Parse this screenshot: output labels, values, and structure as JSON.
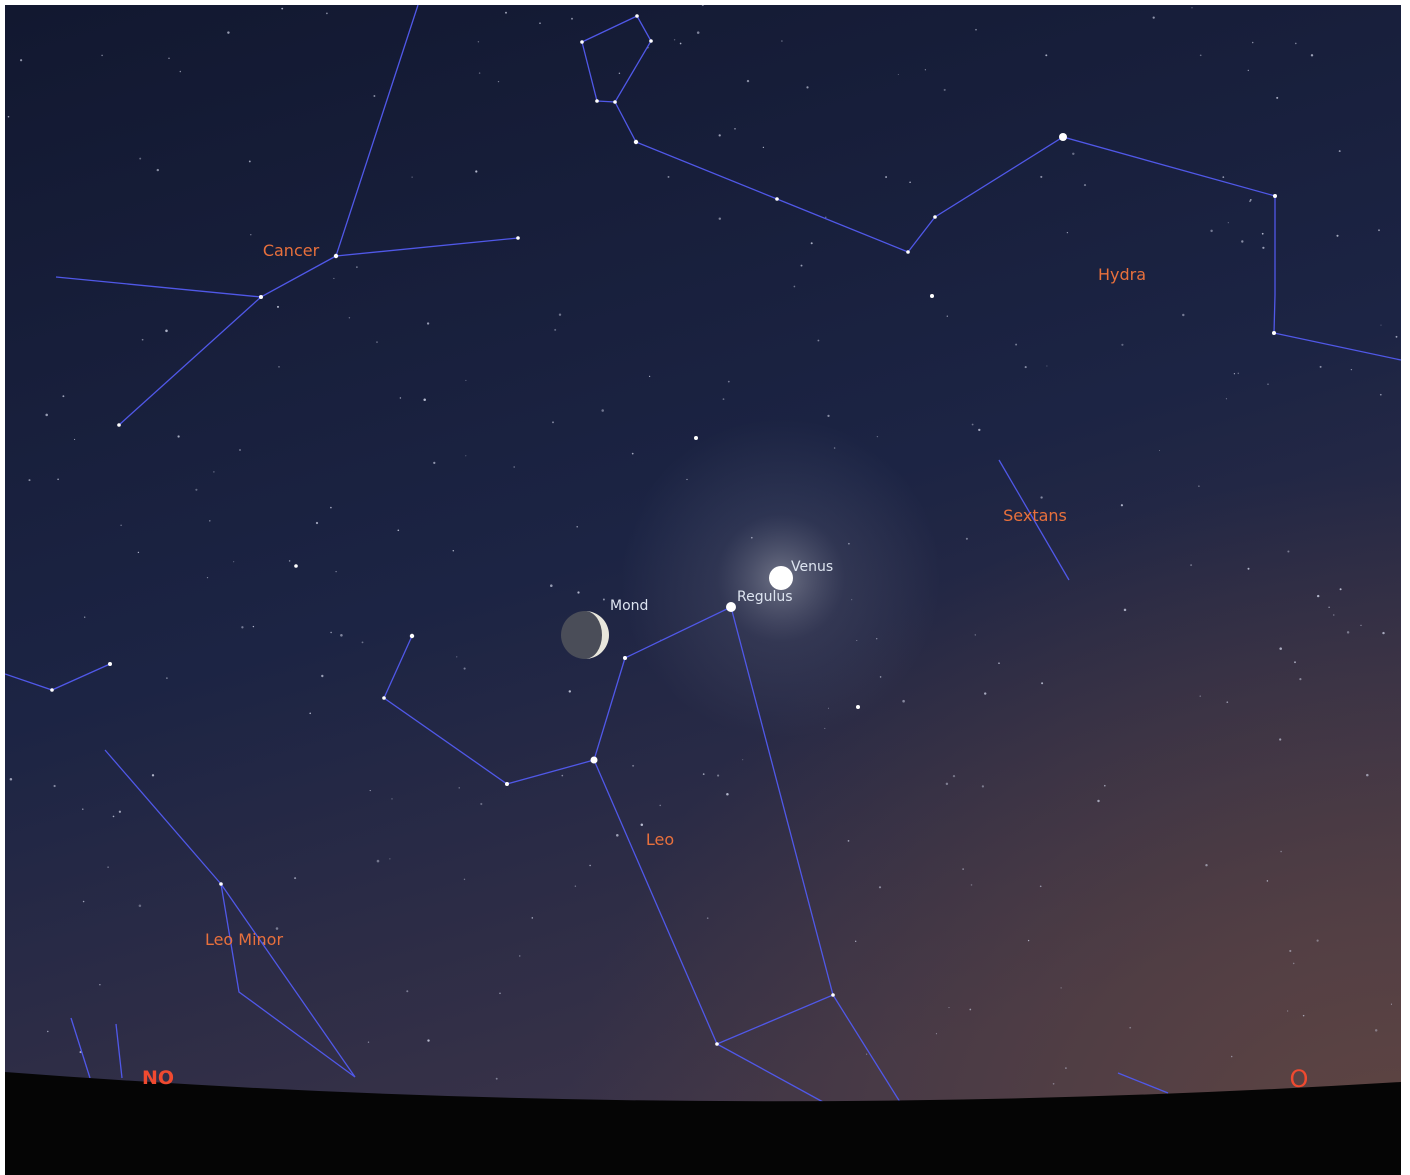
{
  "constellations": {
    "cancer": "Cancer",
    "hydra": "Hydra",
    "sextans": "Sextans",
    "leo": "Leo",
    "leo_minor": "Leo Minor"
  },
  "objects": {
    "moon": "Mond",
    "venus": "Venus",
    "regulus": "Regulus"
  },
  "directions": {
    "northeast": "NO",
    "east": "O"
  }
}
